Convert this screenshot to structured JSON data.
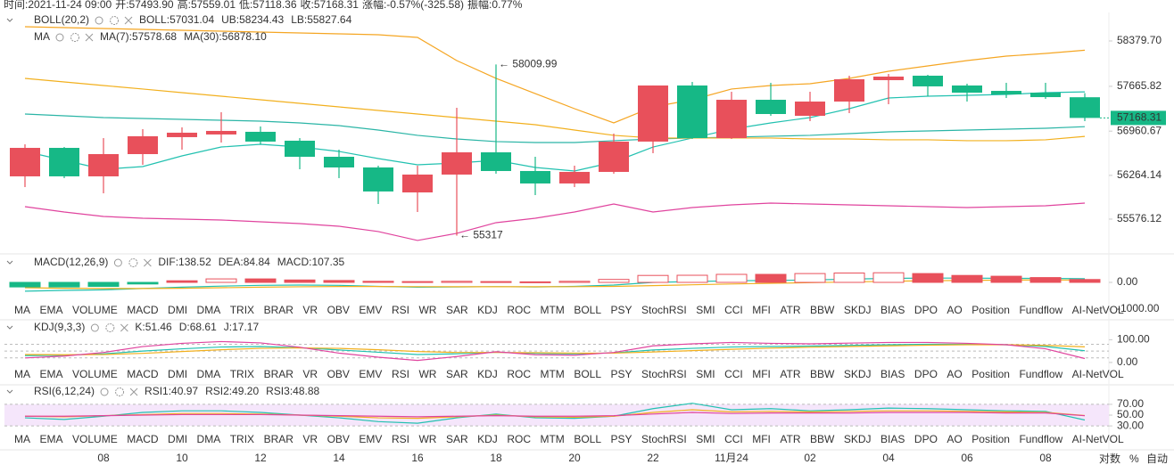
{
  "info": [
    {
      "label": "时间:",
      "value": "2021-11-24 09:00"
    },
    {
      "label": "开:",
      "value": "57493.90"
    },
    {
      "label": "高:",
      "value": "57559.01"
    },
    {
      "label": "低:",
      "value": "57118.36"
    },
    {
      "label": "收:",
      "value": "57168.31"
    },
    {
      "label": "涨幅:",
      "value": "-0.57%(-325.58)"
    },
    {
      "label": "振幅:",
      "value": "0.77%"
    }
  ],
  "tabs": [
    "MA",
    "EMA",
    "VOLUME",
    "MACD",
    "DMI",
    "DMA",
    "TRIX",
    "BRAR",
    "VR",
    "OBV",
    "EMV",
    "RSI",
    "WR",
    "SAR",
    "KDJ",
    "ROC",
    "MTM",
    "BOLL",
    "PSY",
    "StochRSI",
    "SMI",
    "CCI",
    "MFI",
    "ATR",
    "BBW",
    "SKDJ",
    "BIAS",
    "DPO",
    "AO",
    "Position",
    "Fundflow",
    "AI-NetVOL"
  ],
  "scale_options": [
    "对数",
    "%",
    "自动"
  ],
  "chart_data": [
    {
      "type": "candlestick",
      "up_color": "#e8505b",
      "down_color": "#16b886",
      "categories": [
        null,
        null,
        "08",
        null,
        "10",
        null,
        "12",
        null,
        "14",
        null,
        "16",
        null,
        "18",
        null,
        "20",
        null,
        "22",
        null,
        "11月24",
        null,
        "02",
        null,
        "04",
        null,
        "06",
        null,
        "08",
        null
      ],
      "open": [
        56249,
        56697,
        56249,
        56599,
        56866,
        56908,
        56950,
        56810,
        56557,
        56389,
        55996,
        56277,
        56627,
        56333,
        56137,
        56319,
        56796,
        57679,
        56851,
        57454,
        57202,
        57426,
        57763,
        57833,
        57679,
        57594,
        57566,
        57493.9
      ],
      "high": [
        56753,
        56711,
        56851,
        56992,
        57020,
        57258,
        57034,
        56851,
        56669,
        56417,
        56417,
        57328,
        58009.99,
        56557,
        56417,
        56922,
        57679,
        57735,
        57580,
        57721,
        57580,
        57833,
        57861,
        57847,
        57707,
        57721,
        57721,
        57559.01
      ],
      "low": [
        56080,
        56221,
        55982,
        56431,
        56669,
        56781,
        56753,
        56361,
        56221,
        55814,
        55688,
        55317,
        56291,
        55954,
        56080,
        56291,
        56613,
        56837,
        56837,
        57202,
        57118,
        57244,
        57384,
        57510,
        57426,
        57482,
        57468,
        57118.36
      ],
      "close": [
        56697,
        56249,
        56599,
        56880,
        56936,
        56964,
        56796,
        56557,
        56389,
        56011,
        56277,
        56627,
        56333,
        56137,
        56319,
        56796,
        57679,
        56851,
        57454,
        57230,
        57426,
        57777,
        57819,
        57665,
        57566,
        57538,
        57496,
        57168.31
      ],
      "indicators": [
        {
          "title": "BOLL(20,2)",
          "series": [
            {
              "name": "BOLL:57031.04",
              "color": "#2bb5a6",
              "values": [
                57230,
                57202,
                57174,
                57160,
                57146,
                57132,
                57118,
                57090,
                57048,
                56978,
                56894,
                56837,
                56796,
                56781,
                56781,
                56810,
                56837,
                56852,
                56866,
                56880,
                56894,
                56922,
                56950,
                56964,
                56978,
                56992,
                57006,
                57031.04
              ]
            },
            {
              "name": "UB:58234.43",
              "color": "#f5a623",
              "values": [
                58604,
                58590,
                58576,
                58562,
                58548,
                58534,
                58520,
                58506,
                58492,
                58478,
                58436,
                58071,
                57791,
                57552,
                57314,
                57090,
                57342,
                57454,
                57623,
                57679,
                57707,
                57791,
                57903,
                57987,
                58071,
                58141,
                58183,
                58234.43
              ]
            },
            {
              "name": "LB:55827.64",
              "color": "#e0449e",
              "values": [
                55772,
                55688,
                55618,
                55590,
                55576,
                55562,
                55534,
                55506,
                55464,
                55380,
                55240,
                55352,
                55520,
                55590,
                55688,
                55814,
                55688,
                55758,
                55800,
                55828,
                55814,
                55800,
                55786,
                55772,
                55758,
                55772,
                55786,
                55827.64
              ]
            }
          ]
        },
        {
          "title": "MA",
          "series": [
            {
              "name": "MA(7):57578.68",
              "color": "#22c1b0",
              "values": [
                56641,
                56501,
                56361,
                56403,
                56571,
                56711,
                56753,
                56711,
                56641,
                56529,
                56431,
                56459,
                56501,
                56389,
                56333,
                56473,
                56711,
                56852,
                56992,
                57090,
                57174,
                57314,
                57482,
                57510,
                57524,
                57538,
                57566,
                57578.68
              ]
            },
            {
              "name": "MA(30):56878.10",
              "color": "#f2b01e",
              "values": [
                57791,
                57735,
                57679,
                57623,
                57566,
                57510,
                57454,
                57398,
                57342,
                57286,
                57230,
                57174,
                57118,
                57062,
                56978,
                56894,
                56852,
                56852,
                56852,
                56852,
                56837,
                56837,
                56824,
                56824,
                56810,
                56810,
                56824,
                56878.1
              ]
            }
          ]
        }
      ],
      "annotations": [
        {
          "text": "← 58009.99",
          "x": 12,
          "y": 58009.99
        },
        {
          "text": "← 55317",
          "x": 11,
          "y": 55317
        }
      ],
      "ylim": [
        55057,
        58772
      ],
      "yticks": [
        {
          "value": 58379.7,
          "label": "58379.70"
        },
        57665.82,
        56960.67,
        56264.14,
        55576.12
      ],
      "grid": false
    },
    {
      "type": "macd",
      "title": "MACD(12,26,9)",
      "active_tab": "MACD",
      "series": [
        {
          "name": "DIF:138.52",
          "color": "#22c1b0",
          "values": [
            -330,
            -300,
            -280,
            -230,
            -180,
            -140,
            -110,
            -100,
            -110,
            -150,
            -180,
            -170,
            -160,
            -170,
            -150,
            -100,
            0,
            30,
            60,
            70,
            90,
            120,
            150,
            160,
            160,
            150,
            150,
            138.52
          ]
        },
        {
          "name": "DEA:84.84",
          "color": "#f2b01e",
          "values": [
            -200,
            -220,
            -230,
            -230,
            -220,
            -200,
            -180,
            -165,
            -155,
            -155,
            -160,
            -162,
            -162,
            -163,
            -160,
            -150,
            -120,
            -90,
            -60,
            -35,
            -10,
            15,
            40,
            60,
            75,
            85,
            90,
            84.84
          ]
        },
        {
          "name": "MACD:107.35",
          "color": "#e8505b",
          "kind": "histogram",
          "down_color": "#16b886",
          "values": [
            -170,
            -170,
            -150,
            -60,
            60,
            130,
            130,
            90,
            70,
            40,
            30,
            40,
            30,
            20,
            40,
            110,
            260,
            266,
            300,
            300,
            330,
            350,
            360,
            330,
            260,
            230,
            180,
            107.35
          ]
        }
      ],
      "ylim": [
        -1000,
        900
      ],
      "yticks": [
        {
          "value": 0,
          "label": "0.00"
        },
        {
          "value": -1000,
          "label": "-1000.00"
        }
      ]
    },
    {
      "type": "line",
      "title": "KDJ(9,3,3)",
      "active_tab": "KDJ",
      "series": [
        {
          "name": "K:51.46",
          "color": "#22c1b0",
          "values": [
            30,
            32,
            38,
            50,
            60,
            68,
            70,
            65,
            55,
            45,
            35,
            38,
            45,
            40,
            38,
            42,
            55,
            62,
            68,
            70,
            72,
            75,
            78,
            80,
            80,
            78,
            70,
            51.46
          ]
        },
        {
          "name": "D:68.61",
          "color": "#f2b01e",
          "values": [
            35,
            34,
            35,
            40,
            48,
            56,
            62,
            64,
            62,
            56,
            48,
            44,
            44,
            43,
            41,
            41,
            46,
            52,
            58,
            63,
            67,
            70,
            73,
            76,
            78,
            78,
            75,
            68.61
          ]
        },
        {
          "name": "J:17.17",
          "color": "#e0449e",
          "values": [
            20,
            28,
            44,
            70,
            84,
            92,
            86,
            67,
            41,
            23,
            9,
            26,
            47,
            34,
            32,
            44,
            73,
            82,
            88,
            84,
            82,
            85,
            88,
            88,
            84,
            78,
            60,
            17.17
          ]
        }
      ],
      "levels": [
        20,
        50,
        80
      ],
      "ylim": [
        -20,
        125
      ],
      "yticks": [
        {
          "value": 100,
          "label": "100.00"
        },
        {
          "value": 0,
          "label": "0.00"
        }
      ]
    },
    {
      "type": "line",
      "title": "RSI(6,12,24)",
      "active_tab": "RSI",
      "series": [
        {
          "name": "RSI1:40.97",
          "color": "#22c1b0",
          "values": [
            45,
            42,
            48,
            55,
            58,
            58,
            55,
            50,
            45,
            38,
            35,
            45,
            52,
            45,
            44,
            48,
            62,
            72,
            60,
            62,
            58,
            60,
            63,
            62,
            60,
            58,
            57,
            40.97
          ]
        },
        {
          "name": "RSI2:49.20",
          "color": "#f2b01e",
          "values": [
            48,
            47,
            49,
            51,
            53,
            53,
            52,
            50,
            48,
            45,
            44,
            47,
            50,
            47,
            46,
            48,
            55,
            60,
            56,
            57,
            56,
            57,
            58,
            58,
            57,
            56,
            55,
            49.2
          ]
        },
        {
          "name": "RSI3:48.88",
          "color": "#e0449e",
          "values": [
            48,
            48,
            49,
            50,
            51,
            51,
            51,
            50,
            49,
            48,
            47,
            48,
            49,
            48,
            48,
            49,
            52,
            55,
            53,
            54,
            54,
            54,
            55,
            55,
            55,
            54,
            54,
            48.88
          ]
        }
      ],
      "band": [
        30,
        70
      ],
      "band_color": "#f5e6fb",
      "ylim": [
        17,
        93
      ],
      "yticks": [
        {
          "value": 70,
          "label": "70.00"
        },
        {
          "value": 50,
          "label": "50.00"
        },
        {
          "value": 30,
          "label": "30.00"
        }
      ]
    }
  ]
}
